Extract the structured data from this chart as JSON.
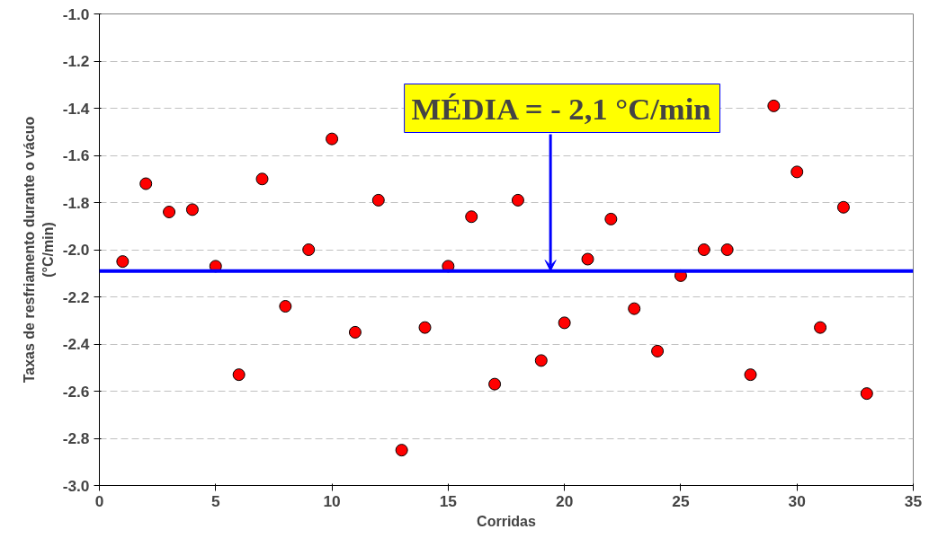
{
  "chart_data": {
    "type": "scatter",
    "xlabel": "Corridas",
    "ylabel": "Taxas de resfriamento durante o vácuo\n(°C/min)",
    "x": [
      1,
      2,
      3,
      4,
      5,
      6,
      7,
      8,
      9,
      10,
      11,
      12,
      13,
      14,
      15,
      16,
      17,
      18,
      19,
      20,
      21,
      22,
      23,
      24,
      25,
      26,
      27,
      28,
      29,
      30,
      31,
      32,
      33
    ],
    "series": [
      {
        "color": "#ff0000",
        "values": [
          -2.05,
          -1.72,
          -1.84,
          -1.83,
          -2.07,
          -2.53,
          -1.7,
          -2.24,
          -2.0,
          -1.53,
          -2.35,
          -1.79,
          -2.85,
          -2.33,
          -2.07,
          -1.86,
          -2.57,
          -1.79,
          -2.47,
          -2.31,
          -2.04,
          -1.87,
          -2.25,
          -2.43,
          -2.11,
          -2.0,
          -2.0,
          -2.53,
          -1.39,
          -1.67,
          -2.33,
          -1.82,
          -2.61
        ]
      }
    ],
    "marker": "circle",
    "grid": "y",
    "xlim": [
      0,
      35
    ],
    "xticks": [
      0,
      5,
      10,
      15,
      20,
      25,
      30,
      35
    ],
    "ylim": [
      -3.0,
      -1.0
    ],
    "yticks": [
      {
        "value": -3.0,
        "label": "-3.0"
      },
      {
        "value": -2.8,
        "label": "-2.8"
      },
      {
        "value": -2.6,
        "label": "-2.6"
      },
      {
        "value": -2.4,
        "label": "-2.4"
      },
      {
        "value": -2.2,
        "label": "-2.2"
      },
      {
        "value": -2.0,
        "label": "-2.0"
      },
      {
        "value": -1.8,
        "label": "-1.8"
      },
      {
        "value": -1.6,
        "label": "-1.6"
      },
      {
        "value": -1.4,
        "label": "-1.4"
      },
      {
        "value": -1.2,
        "label": "-1.2"
      },
      {
        "value": -1.0,
        "label": "-1.0"
      }
    ],
    "ref_lines": [
      {
        "axis": "y",
        "value": -2.09,
        "color": "#0000ff"
      }
    ],
    "annotations": [
      {
        "text": "MÉDIA = - 2,1 °C/min",
        "x": 19.4,
        "y": -2.09
      }
    ]
  }
}
